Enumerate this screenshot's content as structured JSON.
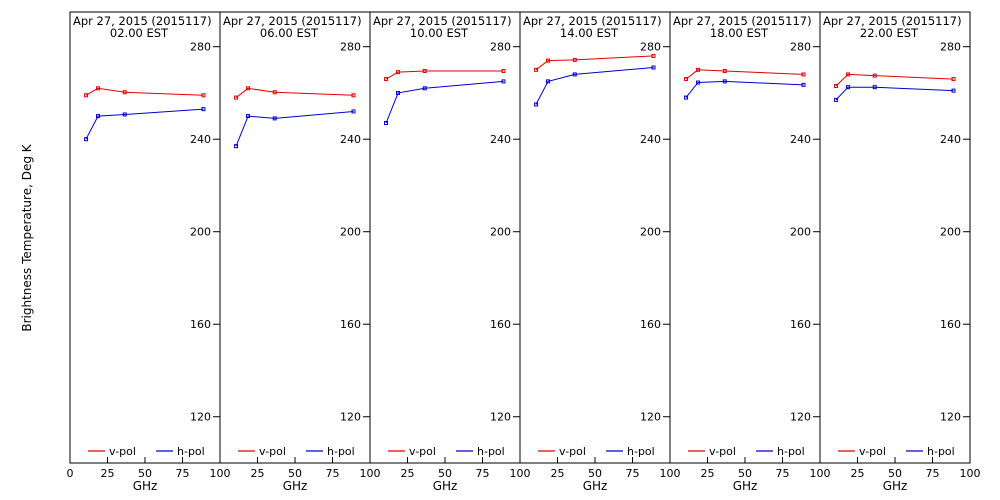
{
  "figure": {
    "ylabel": "Brightness Temperature, Deg K",
    "xlabel": "GHz"
  },
  "chart_data": [
    {
      "type": "line",
      "title": "Apr 27, 2015 (2015117)",
      "subtitle": "02.00 EST",
      "xlabel": "GHz",
      "ylabel": "Brightness Temperature, Deg K",
      "xlim": [
        0,
        100
      ],
      "ylim": [
        100,
        295
      ],
      "x_ticks": [
        "0",
        "25",
        "50",
        "75",
        "100"
      ],
      "y_ticks": [
        "120",
        "160",
        "200",
        "240",
        "280"
      ],
      "legend_position": "bottom",
      "x": [
        10.7,
        18.7,
        36.5,
        89.0
      ],
      "series": [
        {
          "name": "v-pol",
          "color": "#e00000",
          "values": [
            259,
            262,
            260.3,
            259
          ]
        },
        {
          "name": "h-pol",
          "color": "#0000d0",
          "values": [
            240,
            250,
            250.7,
            253
          ]
        }
      ]
    },
    {
      "type": "line",
      "title": "Apr 27, 2015 (2015117)",
      "subtitle": "06.00 EST",
      "xlabel": "GHz",
      "ylabel": "Brightness Temperature, Deg K",
      "xlim": [
        0,
        100
      ],
      "ylim": [
        100,
        295
      ],
      "x_ticks": [
        "0",
        "25",
        "50",
        "75",
        "100"
      ],
      "y_ticks": [
        "120",
        "160",
        "200",
        "240",
        "280"
      ],
      "legend_position": "bottom",
      "x": [
        10.7,
        18.7,
        36.5,
        89.0
      ],
      "series": [
        {
          "name": "v-pol",
          "color": "#e00000",
          "values": [
            258,
            262,
            260.3,
            259
          ]
        },
        {
          "name": "h-pol",
          "color": "#0000d0",
          "values": [
            237,
            250,
            249,
            252
          ]
        }
      ]
    },
    {
      "type": "line",
      "title": "Apr 27, 2015 (2015117)",
      "subtitle": "10.00 EST",
      "xlabel": "GHz",
      "ylabel": "Brightness Temperature, Deg K",
      "xlim": [
        0,
        100
      ],
      "ylim": [
        100,
        295
      ],
      "x_ticks": [
        "0",
        "25",
        "50",
        "75",
        "100"
      ],
      "y_ticks": [
        "120",
        "160",
        "200",
        "240",
        "280"
      ],
      "legend_position": "bottom",
      "x": [
        10.7,
        18.7,
        36.5,
        89.0
      ],
      "series": [
        {
          "name": "v-pol",
          "color": "#e00000",
          "values": [
            266,
            269,
            269.5,
            269.5
          ]
        },
        {
          "name": "h-pol",
          "color": "#0000d0",
          "values": [
            247,
            260,
            262,
            265
          ]
        }
      ]
    },
    {
      "type": "line",
      "title": "Apr 27, 2015 (2015117)",
      "subtitle": "14.00 EST",
      "xlabel": "GHz",
      "ylabel": "Brightness Temperature, Deg K",
      "xlim": [
        0,
        100
      ],
      "ylim": [
        100,
        295
      ],
      "x_ticks": [
        "0",
        "25",
        "50",
        "75",
        "100"
      ],
      "y_ticks": [
        "120",
        "160",
        "200",
        "240",
        "280"
      ],
      "legend_position": "bottom",
      "x": [
        10.7,
        18.7,
        36.5,
        89.0
      ],
      "series": [
        {
          "name": "v-pol",
          "color": "#e00000",
          "values": [
            270,
            274,
            274.3,
            276
          ]
        },
        {
          "name": "h-pol",
          "color": "#0000d0",
          "values": [
            255,
            265,
            268,
            271
          ]
        }
      ]
    },
    {
      "type": "line",
      "title": "Apr 27, 2015 (2015117)",
      "subtitle": "18.00 EST",
      "xlabel": "GHz",
      "ylabel": "Brightness Temperature, Deg K",
      "xlim": [
        0,
        100
      ],
      "ylim": [
        100,
        295
      ],
      "x_ticks": [
        "0",
        "25",
        "50",
        "75",
        "100"
      ],
      "y_ticks": [
        "120",
        "160",
        "200",
        "240",
        "280"
      ],
      "legend_position": "bottom",
      "x": [
        10.7,
        18.7,
        36.5,
        89.0
      ],
      "series": [
        {
          "name": "v-pol",
          "color": "#e00000",
          "values": [
            266,
            270,
            269.5,
            268
          ]
        },
        {
          "name": "h-pol",
          "color": "#0000d0",
          "values": [
            258,
            264.5,
            265,
            263.5
          ]
        }
      ]
    },
    {
      "type": "line",
      "title": "Apr 27, 2015 (2015117)",
      "subtitle": "22.00 EST",
      "xlabel": "GHz",
      "ylabel": "Brightness Temperature, Deg K",
      "xlim": [
        0,
        100
      ],
      "ylim": [
        100,
        295
      ],
      "x_ticks": [
        "0",
        "25",
        "50",
        "75",
        "100"
      ],
      "y_ticks": [
        "120",
        "160",
        "200",
        "240",
        "280"
      ],
      "legend_position": "bottom",
      "x": [
        10.7,
        18.7,
        36.5,
        89.0
      ],
      "series": [
        {
          "name": "v-pol",
          "color": "#e00000",
          "values": [
            263,
            268,
            267.5,
            266
          ]
        },
        {
          "name": "h-pol",
          "color": "#0000d0",
          "values": [
            257,
            262.5,
            262.5,
            261
          ]
        }
      ]
    }
  ]
}
